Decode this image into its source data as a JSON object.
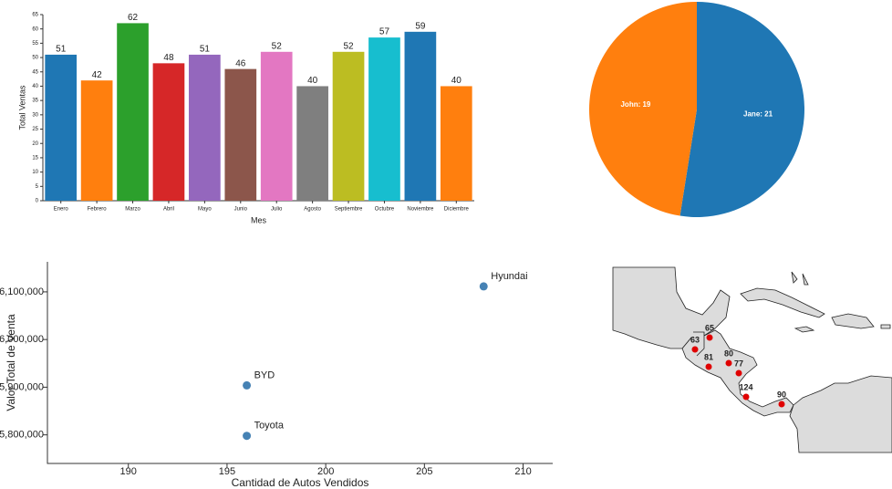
{
  "chart_data": [
    {
      "type": "bar",
      "x_label": "Mes",
      "y_label": "Total Ventas",
      "categories": [
        "Enero",
        "Febrero",
        "Marzo",
        "Abril",
        "Mayo",
        "Junio",
        "Julio",
        "Agosto",
        "Septiembre",
        "Octubre",
        "Noviembre",
        "Diciembre"
      ],
      "values": [
        51,
        42,
        62,
        48,
        51,
        46,
        52,
        40,
        52,
        57,
        59,
        40
      ],
      "colors": [
        "#1f77b4",
        "#ff7f0e",
        "#2ca02c",
        "#d62728",
        "#9467bd",
        "#8c564b",
        "#e377c2",
        "#7f7f7f",
        "#bcbd22",
        "#17becf",
        "#1f77b4",
        "#ff7f0e"
      ],
      "ylim": [
        0,
        65
      ],
      "yticks": [
        0,
        5,
        10,
        15,
        20,
        25,
        30,
        35,
        40,
        45,
        50,
        55,
        60,
        65
      ]
    },
    {
      "type": "pie",
      "categories": [
        "Jane",
        "John"
      ],
      "values": [
        21,
        19
      ],
      "value_labels": [
        "Jane: 21",
        "John: 19"
      ],
      "colors": [
        "#1f77b4",
        "#ff7f0e"
      ]
    },
    {
      "type": "scatter",
      "x_label": "Cantidad de Autos Vendidos",
      "y_label": "Valor Total de Venta",
      "labels": [
        "Hyundai",
        "BYD",
        "Toyota"
      ],
      "x": [
        208,
        196,
        196
      ],
      "values": [
        6111500,
        5903800,
        5798000
      ],
      "color": "#4682b4",
      "xlim": [
        185.9,
        211.5
      ],
      "xticks": [
        190,
        195,
        200,
        205,
        210
      ],
      "ylim": [
        5740000,
        6163000
      ],
      "yticks": [
        {
          "value": 5800000,
          "label": "5,800,000"
        },
        {
          "value": 5900000,
          "label": "5,900,000"
        },
        {
          "value": 6000000,
          "label": "6,000,000"
        },
        {
          "value": 6100000,
          "label": "6,100,000"
        }
      ]
    },
    {
      "type": "map",
      "values": [
        63,
        65,
        81,
        80,
        77,
        124,
        90
      ],
      "color": "#e00000"
    }
  ]
}
